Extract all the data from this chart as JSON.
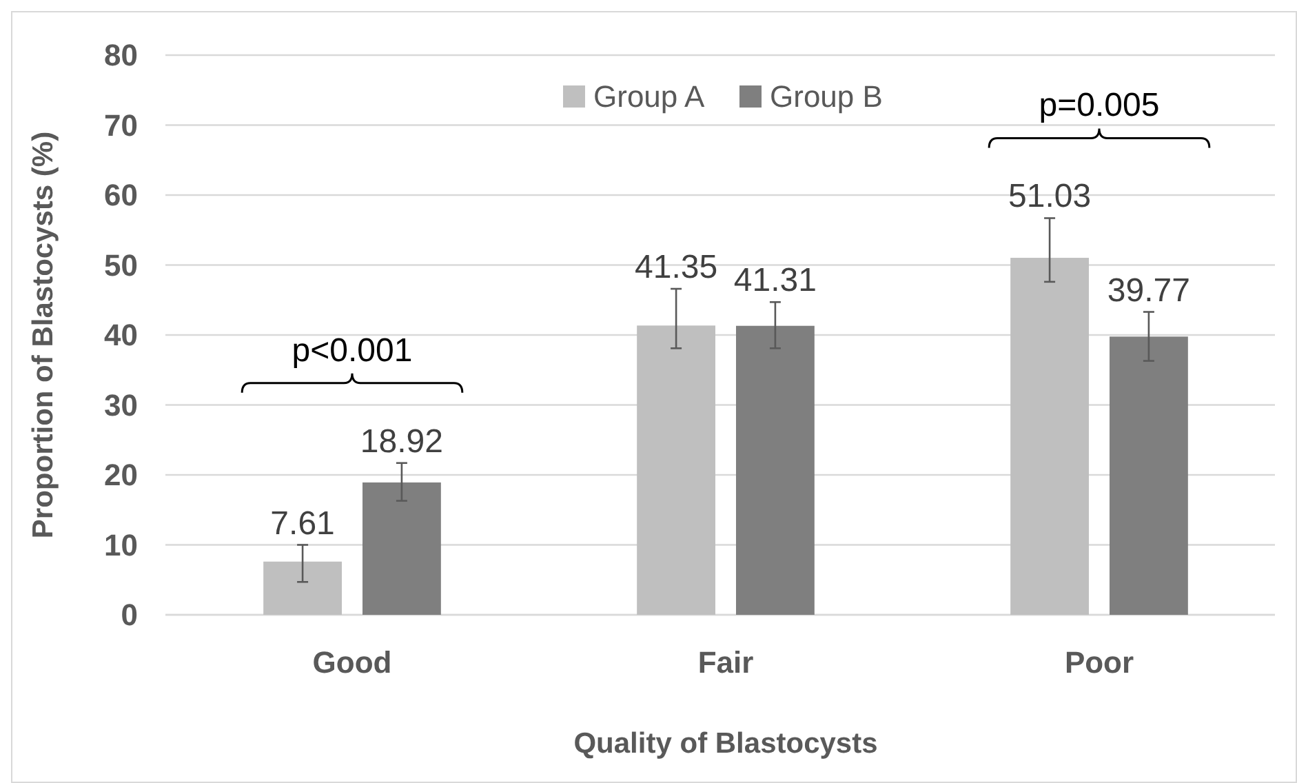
{
  "chart_data": {
    "type": "bar",
    "xlabel": "Quality of Blastocysts",
    "ylabel": "Proportion of Blastocysts (%)",
    "categories": [
      "Good",
      "Fair",
      "Poor"
    ],
    "series": [
      {
        "name": "Group A",
        "color": "#bfbfbf",
        "values": [
          7.61,
          41.35,
          51.03
        ],
        "errors": [
          [
            4.7,
            10.0
          ],
          [
            38.1,
            46.6
          ],
          [
            47.6,
            56.7
          ]
        ]
      },
      {
        "name": "Group B",
        "color": "#7f7f7f",
        "values": [
          18.92,
          41.31,
          39.77
        ],
        "errors": [
          [
            16.3,
            21.7
          ],
          [
            38.1,
            44.7
          ],
          [
            36.3,
            43.3
          ]
        ]
      }
    ],
    "ylim": [
      0,
      80
    ],
    "yticks": [
      0,
      10,
      20,
      30,
      40,
      50,
      60,
      70,
      80
    ],
    "grid": "y",
    "legend": "top",
    "data_labels": true,
    "annotations": [
      "p<0.001",
      "p=0.005"
    ]
  }
}
